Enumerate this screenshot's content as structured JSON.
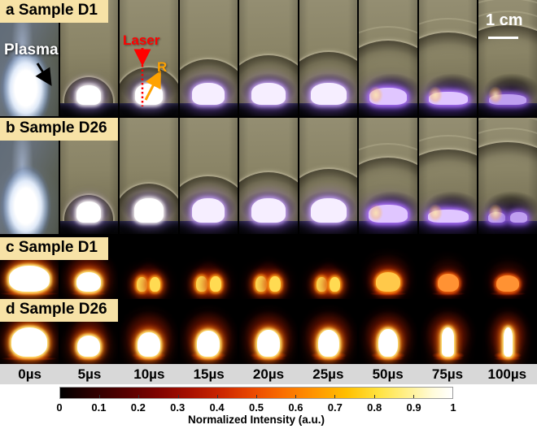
{
  "figure": {
    "panels": [
      {
        "id": "a",
        "label": "a Sample D1",
        "type": "shadowgraph",
        "cells": [
          {
            "flash": true
          },
          {
            "r": 30,
            "pw": 30,
            "ph": 24,
            "hue": "white"
          },
          {
            "r": 42,
            "pw": 34,
            "ph": 26,
            "hue": "white"
          },
          {
            "r": 52,
            "pw": 40,
            "ph": 27,
            "hue": "violet"
          },
          {
            "r": 57,
            "pw": 42,
            "ph": 27,
            "hue": "violet"
          },
          {
            "r": 61,
            "pw": 44,
            "ph": 27,
            "hue": "violet"
          },
          {
            "r": 75,
            "arcs": 2,
            "pw": 46,
            "ph": 21,
            "hue": "purple"
          },
          {
            "r": 85,
            "arcs": 2,
            "pw": 48,
            "ph": 16,
            "hue": "purple"
          },
          {
            "r": 94,
            "arcs": 3,
            "pw": 46,
            "ph": 13,
            "hue": "purpledim"
          }
        ]
      },
      {
        "id": "b",
        "label": "b Sample D26",
        "type": "shadowgraph",
        "cells": [
          {
            "flash": true
          },
          {
            "r": 30,
            "pw": 30,
            "ph": 26,
            "hue": "white"
          },
          {
            "r": 44,
            "pw": 36,
            "ph": 30,
            "hue": "white"
          },
          {
            "r": 53,
            "pw": 40,
            "ph": 30,
            "hue": "violet"
          },
          {
            "r": 58,
            "pw": 42,
            "ph": 30,
            "hue": "violet"
          },
          {
            "r": 62,
            "pw": 44,
            "ph": 30,
            "hue": "violet"
          },
          {
            "r": 76,
            "arcs": 2,
            "pw": 48,
            "ph": 22,
            "hue": "purple"
          },
          {
            "r": 86,
            "arcs": 2,
            "pw": 50,
            "ph": 16,
            "hue": "purple"
          },
          {
            "r": 95,
            "arcs": 3,
            "pw": 50,
            "ph": 13,
            "hue": "purpledim",
            "lobes": 2
          }
        ]
      },
      {
        "id": "c",
        "label": "c Sample D1",
        "type": "emission",
        "cells": [
          {
            "cw": 50,
            "ch": 32,
            "tone": "bright",
            "skirt": 62,
            "streak": 72,
            "glow": 1.5
          },
          {
            "cw": 30,
            "ch": 24,
            "tone": "bright",
            "skirt": 40,
            "streak": 44
          },
          {
            "cw": 13,
            "ch": 18,
            "tone": "mid",
            "lobes": 2
          },
          {
            "cw": 14,
            "ch": 19,
            "tone": "mid",
            "lobes": 2
          },
          {
            "cw": 14,
            "ch": 19,
            "tone": "mid",
            "lobes": 2
          },
          {
            "cw": 13,
            "ch": 18,
            "tone": "mid",
            "lobes": 2
          },
          {
            "cw": 30,
            "ch": 24,
            "tone": "warm",
            "skirt": 40,
            "streak": 46
          },
          {
            "cw": 26,
            "ch": 22,
            "tone": "dim",
            "skirt": 34,
            "streak": 42
          },
          {
            "cw": 28,
            "ch": 20,
            "tone": "dim",
            "skirt": 36,
            "streak": 46
          }
        ]
      },
      {
        "id": "d",
        "label": "d Sample D26",
        "type": "emission",
        "cells": [
          {
            "cw": 44,
            "ch": 36,
            "tone": "bright",
            "skirt": 56,
            "streak": 70,
            "glow": 1.5
          },
          {
            "cw": 28,
            "ch": 26,
            "tone": "bright",
            "skirt": 34,
            "streak": 34
          },
          {
            "cw": 28,
            "ch": 30,
            "tone": "bright",
            "skirt": 42,
            "streak": 40
          },
          {
            "cw": 28,
            "ch": 32,
            "tone": "bright",
            "skirt": 44,
            "streak": 42
          },
          {
            "cw": 28,
            "ch": 33,
            "tone": "bright",
            "skirt": 46,
            "streak": 44
          },
          {
            "cw": 26,
            "ch": 33,
            "tone": "bright",
            "skirt": 44,
            "streak": 42
          },
          {
            "cw": 24,
            "ch": 34,
            "tone": "bright",
            "skirt": 42,
            "streak": 40
          },
          {
            "cw": 15,
            "ch": 36,
            "tone": "bright",
            "skirt": 40,
            "streak": 38
          },
          {
            "cw": 11,
            "ch": 36,
            "tone": "bright",
            "skirt": 34,
            "streak": 34
          }
        ]
      }
    ],
    "annotations": {
      "plasma": "Plasma",
      "laser": "Laser",
      "radius": "R",
      "scale_bar": "1 cm"
    },
    "time_axis": [
      "0µs",
      "5µs",
      "10µs",
      "15µs",
      "20µs",
      "25µs",
      "50µs",
      "75µs",
      "100µs"
    ],
    "colorbar": {
      "label": "Normalized Intensity (a.u.)",
      "ticks": [
        "0",
        "0.1",
        "0.2",
        "0.3",
        "0.4",
        "0.5",
        "0.6",
        "0.7",
        "0.8",
        "0.9",
        "1"
      ],
      "stops": [
        [
          0,
          "#000000"
        ],
        [
          0.08,
          "#2b0000"
        ],
        [
          0.17,
          "#570000"
        ],
        [
          0.25,
          "#800300"
        ],
        [
          0.33,
          "#a71000"
        ],
        [
          0.41,
          "#cb2600"
        ],
        [
          0.49,
          "#ea4800"
        ],
        [
          0.57,
          "#fa6f00"
        ],
        [
          0.65,
          "#ff9600"
        ],
        [
          0.73,
          "#ffbf00"
        ],
        [
          0.81,
          "#ffe23e"
        ],
        [
          0.89,
          "#fff192"
        ],
        [
          0.95,
          "#fffbda"
        ],
        [
          1,
          "#ffffff"
        ]
      ]
    },
    "colors": {
      "label_bg": "#f7e2a6",
      "laser_red": "#ff0000",
      "r_orange": "#ffa200",
      "strip_bg": "#d8d8d8"
    }
  }
}
